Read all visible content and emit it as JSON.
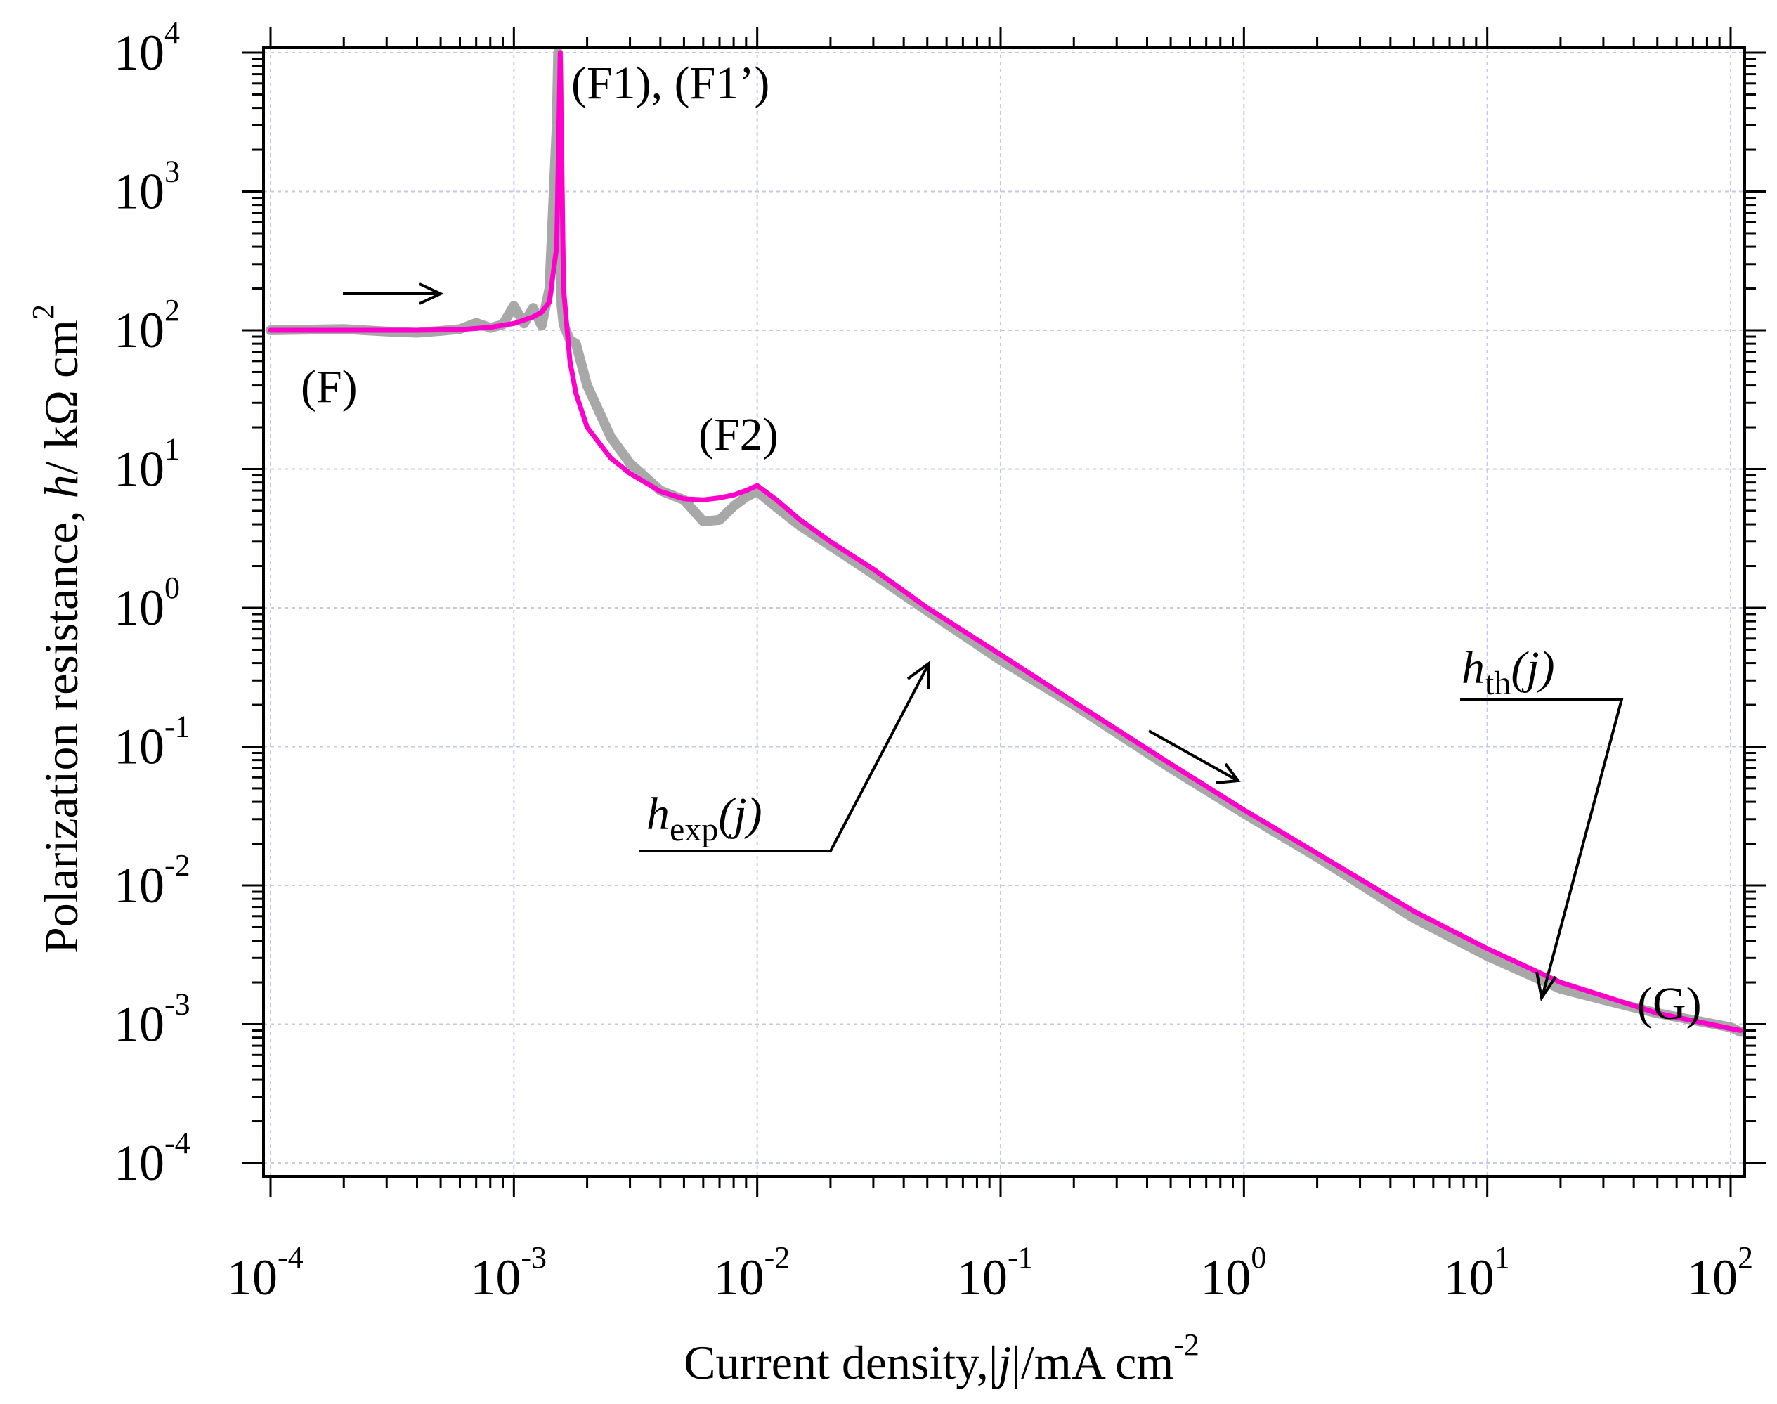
{
  "colors": {
    "theory": "#ff00cc",
    "experiment": "#a8a8a8",
    "grid": "#c6c6ee",
    "axis": "#000000"
  },
  "chart_data": {
    "type": "line",
    "title": "",
    "xlabel": {
      "prefix": "Current density,|",
      "variable": "j",
      "suffix": "|/mA cm",
      "exponent": "-2"
    },
    "ylabel": {
      "prefix": "Polarization resistance, ",
      "variable": "h",
      "suffix": "/ kΩ cm",
      "exponent": "2"
    },
    "x_scale": "log",
    "y_scale": "log",
    "xlim": [
      0.0001,
      100
    ],
    "ylim": [
      0.0001,
      10000
    ],
    "grid": true,
    "x_ticks": [
      {
        "base": "10",
        "exp": "-4",
        "value": 0.0001
      },
      {
        "base": "10",
        "exp": "-3",
        "value": 0.001
      },
      {
        "base": "10",
        "exp": "-2",
        "value": 0.01
      },
      {
        "base": "10",
        "exp": "-1",
        "value": 0.1
      },
      {
        "base": "10",
        "exp": "0",
        "value": 1
      },
      {
        "base": "10",
        "exp": "1",
        "value": 10
      },
      {
        "base": "10",
        "exp": "2",
        "value": 100
      }
    ],
    "y_ticks": [
      {
        "base": "10",
        "exp": "-4",
        "value": 0.0001
      },
      {
        "base": "10",
        "exp": "-3",
        "value": 0.001
      },
      {
        "base": "10",
        "exp": "-2",
        "value": 0.01
      },
      {
        "base": "10",
        "exp": "-1",
        "value": 0.1
      },
      {
        "base": "10",
        "exp": "0",
        "value": 1
      },
      {
        "base": "10",
        "exp": "1",
        "value": 10
      },
      {
        "base": "10",
        "exp": "2",
        "value": 100
      },
      {
        "base": "10",
        "exp": "3",
        "value": 1000
      },
      {
        "base": "10",
        "exp": "4",
        "value": 10000
      }
    ],
    "series": [
      {
        "name": "h_exp(j)",
        "role": "experiment",
        "x": [
          0.0001,
          0.0002,
          0.0003,
          0.0004,
          0.0005,
          0.0006,
          0.0007,
          0.0008,
          0.0009,
          0.001,
          0.0011,
          0.0012,
          0.0013,
          0.0014,
          0.0015,
          0.00152,
          0.00155,
          0.00157,
          0.0016,
          0.0017,
          0.0018,
          0.002,
          0.0025,
          0.003,
          0.004,
          0.005,
          0.006,
          0.007,
          0.008,
          0.009,
          0.01,
          0.012,
          0.015,
          0.02,
          0.03,
          0.05,
          0.1,
          0.2,
          0.5,
          1,
          2,
          5,
          10,
          20,
          30,
          50,
          100,
          110
        ],
        "y": [
          100,
          102,
          98,
          96,
          99,
          102,
          113,
          104,
          110,
          150,
          112,
          145,
          108,
          200,
          3000,
          10000,
          500,
          150,
          110,
          85,
          80,
          40,
          17,
          11,
          7,
          6,
          4.2,
          4.3,
          5.4,
          6.3,
          6.9,
          5.3,
          3.9,
          2.8,
          1.75,
          0.95,
          0.42,
          0.2,
          0.07,
          0.033,
          0.016,
          0.0058,
          0.0031,
          0.0018,
          0.0015,
          0.0012,
          0.00095,
          0.00088
        ]
      },
      {
        "name": "h_th(j)",
        "role": "theory",
        "x": [
          0.0001,
          0.0002,
          0.0004,
          0.0006,
          0.0008,
          0.001,
          0.0012,
          0.0013,
          0.0014,
          0.0015,
          0.00155,
          0.0016,
          0.0017,
          0.0018,
          0.002,
          0.0025,
          0.003,
          0.004,
          0.005,
          0.006,
          0.007,
          0.008,
          0.009,
          0.0095,
          0.01,
          0.012,
          0.015,
          0.02,
          0.03,
          0.05,
          0.1,
          0.2,
          0.5,
          1,
          2,
          5,
          10,
          20,
          30,
          50,
          100,
          110
        ],
        "y": [
          100,
          100,
          100,
          101,
          105,
          112,
          125,
          135,
          160,
          400,
          10000,
          200,
          60,
          35,
          20,
          12,
          9.3,
          6.9,
          6.1,
          6,
          6.2,
          6.5,
          7,
          7.3,
          7.6,
          6,
          4.3,
          3,
          1.9,
          1,
          0.46,
          0.21,
          0.075,
          0.035,
          0.017,
          0.0065,
          0.0035,
          0.002,
          0.0016,
          0.0012,
          0.00093,
          0.0009
        ]
      }
    ],
    "annotations": [
      {
        "text": "(F)",
        "x": 0.00018,
        "y": 30
      },
      {
        "text": "(F1), (F1’)",
        "x": 0.0066,
        "y": 6000
      },
      {
        "text": "(F2)",
        "x": 0.0095,
        "y": 22
      },
      {
        "text": "(G)",
        "x": 95,
        "y": 0.0015
      }
    ],
    "series_labels": [
      {
        "italic": "h",
        "sub": "exp",
        "args": "(j)",
        "x": 0.0082,
        "y": 0.025
      },
      {
        "italic": "h",
        "sub": "th",
        "args": "(j)",
        "x": 24,
        "y": 0.32
      }
    ]
  }
}
